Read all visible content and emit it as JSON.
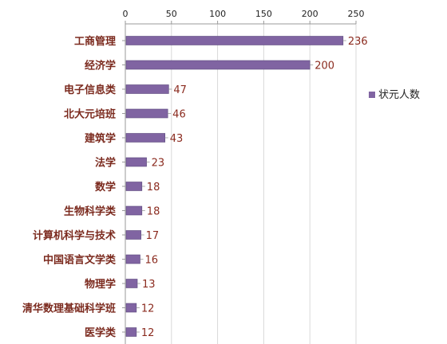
{
  "chart_data": {
    "type": "bar",
    "orientation": "horizontal",
    "title": "",
    "xlabel": "",
    "ylabel": "",
    "xlim": [
      0,
      250
    ],
    "x_ticks": [
      "0",
      "50",
      "100",
      "150",
      "200",
      "250"
    ],
    "x_axis_position": "top",
    "grid": true,
    "legend_position": "right",
    "categories": [
      "工商管理",
      "经济学",
      "电子信息类",
      "北大元培班",
      "建筑学",
      "法学",
      "数学",
      "生物科学类",
      "计算机科学与技术",
      "中国语言文学类",
      "物理学",
      "清华数理基础科学班",
      "医学类"
    ],
    "series": [
      {
        "name": "状元人数",
        "color": "#8064a2",
        "values": [
          236,
          200,
          47,
          46,
          43,
          23,
          18,
          18,
          17,
          16,
          13,
          12,
          12
        ]
      }
    ],
    "value_labels": [
      "236",
      "200",
      "47",
      "46",
      "43",
      "23",
      "18",
      "18",
      "17",
      "16",
      "13",
      "12",
      "12"
    ]
  }
}
